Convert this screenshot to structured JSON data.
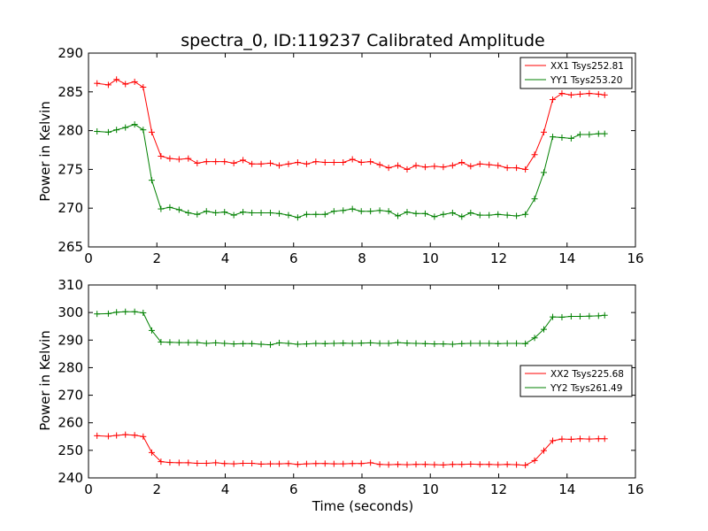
{
  "chart_data": [
    {
      "type": "line",
      "title": "spectra_0, ID:119237 Calibrated Amplitude",
      "xlabel": "",
      "ylabel": "Power in Kelvin",
      "xlim": [
        0,
        16
      ],
      "ylim": [
        265,
        290
      ],
      "xticks": [
        0,
        2,
        4,
        6,
        8,
        10,
        12,
        14,
        16
      ],
      "yticks": [
        265,
        270,
        275,
        280,
        285,
        290
      ],
      "legend_position": "top-right",
      "x": [
        0.25,
        0.58,
        0.82,
        1.08,
        1.35,
        1.6,
        1.85,
        2.12,
        2.38,
        2.65,
        2.92,
        3.18,
        3.45,
        3.72,
        3.98,
        4.25,
        4.52,
        4.78,
        5.05,
        5.32,
        5.58,
        5.85,
        6.12,
        6.38,
        6.65,
        6.92,
        7.18,
        7.45,
        7.72,
        7.98,
        8.25,
        8.52,
        8.78,
        9.05,
        9.32,
        9.58,
        9.85,
        10.12,
        10.38,
        10.65,
        10.92,
        11.18,
        11.45,
        11.72,
        11.98,
        12.25,
        12.52,
        12.78,
        13.05,
        13.32,
        13.58,
        13.85,
        14.12,
        14.38,
        14.65,
        14.92,
        15.1
      ],
      "series": [
        {
          "name": "XX1 Tsys252.81",
          "color": "#ff0000",
          "values": [
            286.1,
            285.9,
            286.6,
            286.0,
            286.3,
            285.6,
            279.8,
            276.7,
            276.4,
            276.3,
            276.4,
            275.8,
            276.0,
            276.0,
            276.0,
            275.8,
            276.2,
            275.7,
            275.7,
            275.8,
            275.5,
            275.7,
            275.9,
            275.7,
            276.0,
            275.9,
            275.9,
            275.9,
            276.3,
            275.9,
            276.0,
            275.6,
            275.2,
            275.5,
            275.0,
            275.5,
            275.3,
            275.4,
            275.3,
            275.5,
            275.9,
            275.4,
            275.7,
            275.6,
            275.5,
            275.2,
            275.2,
            275.0,
            276.9,
            279.8,
            284.0,
            284.8,
            284.6,
            284.7,
            284.8,
            284.7,
            284.6
          ]
        },
        {
          "name": "YY1 Tsys253.20",
          "color": "#008000",
          "values": [
            279.9,
            279.8,
            280.1,
            280.4,
            280.8,
            280.1,
            273.6,
            269.9,
            270.1,
            269.8,
            269.4,
            269.2,
            269.6,
            269.4,
            269.5,
            269.1,
            269.5,
            269.4,
            269.4,
            269.4,
            269.3,
            269.1,
            268.8,
            269.2,
            269.2,
            269.2,
            269.6,
            269.7,
            269.9,
            269.6,
            269.6,
            269.7,
            269.6,
            269.0,
            269.5,
            269.3,
            269.3,
            268.9,
            269.2,
            269.4,
            268.9,
            269.4,
            269.1,
            269.1,
            269.2,
            269.1,
            269.0,
            269.2,
            271.2,
            274.6,
            279.2,
            279.1,
            279.0,
            279.5,
            279.5,
            279.6,
            279.6
          ]
        }
      ]
    },
    {
      "type": "line",
      "title": "",
      "xlabel": "Time (seconds)",
      "ylabel": "Power in Kelvin",
      "xlim": [
        0,
        16
      ],
      "ylim": [
        240,
        310
      ],
      "xticks": [
        0,
        2,
        4,
        6,
        8,
        10,
        12,
        14,
        16
      ],
      "yticks": [
        240,
        250,
        260,
        270,
        280,
        290,
        300,
        310
      ],
      "legend_position": "center-right",
      "x": [
        0.25,
        0.58,
        0.82,
        1.08,
        1.35,
        1.6,
        1.85,
        2.12,
        2.38,
        2.65,
        2.92,
        3.18,
        3.45,
        3.72,
        3.98,
        4.25,
        4.52,
        4.78,
        5.05,
        5.32,
        5.58,
        5.85,
        6.12,
        6.38,
        6.65,
        6.92,
        7.18,
        7.45,
        7.72,
        7.98,
        8.25,
        8.52,
        8.78,
        9.05,
        9.32,
        9.58,
        9.85,
        10.12,
        10.38,
        10.65,
        10.92,
        11.18,
        11.45,
        11.72,
        11.98,
        12.25,
        12.52,
        12.78,
        13.05,
        13.32,
        13.58,
        13.85,
        14.12,
        14.38,
        14.65,
        14.92,
        15.1
      ],
      "series": [
        {
          "name": "XX2 Tsys225.68",
          "color": "#ff0000",
          "values": [
            255.3,
            255.1,
            255.4,
            255.7,
            255.5,
            255.0,
            249.2,
            245.9,
            245.6,
            245.5,
            245.5,
            245.3,
            245.3,
            245.5,
            245.2,
            245.1,
            245.3,
            245.3,
            245.0,
            245.1,
            245.1,
            245.2,
            244.9,
            245.1,
            245.2,
            245.2,
            245.1,
            245.1,
            245.2,
            245.2,
            245.5,
            244.9,
            244.8,
            244.9,
            244.8,
            244.9,
            244.9,
            244.8,
            244.7,
            244.9,
            244.9,
            245.0,
            244.9,
            244.9,
            244.8,
            244.9,
            244.8,
            244.6,
            246.3,
            249.9,
            253.5,
            254.1,
            254.0,
            254.2,
            254.1,
            254.2,
            254.2
          ]
        },
        {
          "name": "YY2 Tsys261.49",
          "color": "#008000",
          "values": [
            299.5,
            299.6,
            300.1,
            300.3,
            300.3,
            299.9,
            293.5,
            289.3,
            289.2,
            289.1,
            289.1,
            289.1,
            288.8,
            289.0,
            288.8,
            288.6,
            288.7,
            288.7,
            288.5,
            288.3,
            289.0,
            288.8,
            288.5,
            288.6,
            288.8,
            288.7,
            288.8,
            288.9,
            288.8,
            288.9,
            289.0,
            288.8,
            288.8,
            289.1,
            288.9,
            288.8,
            288.7,
            288.6,
            288.6,
            288.5,
            288.7,
            288.8,
            288.8,
            288.8,
            288.7,
            288.8,
            288.8,
            288.7,
            290.8,
            293.9,
            298.4,
            298.3,
            298.6,
            298.6,
            298.7,
            298.8,
            299.0
          ]
        }
      ]
    }
  ]
}
